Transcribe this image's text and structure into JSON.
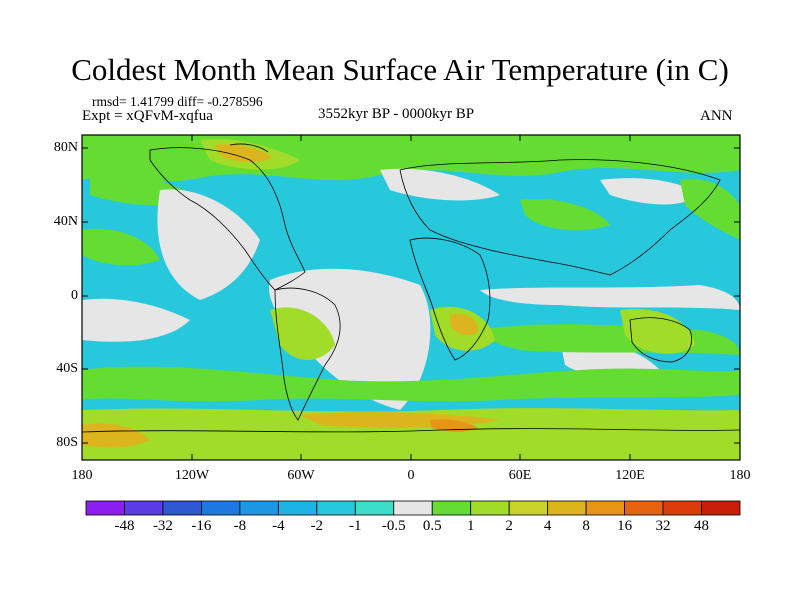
{
  "title": "Coldest Month Mean Surface Air Temperature (in C)",
  "stats": "rmsd= 1.41799  diff= -0.278596",
  "experiment": "Expt = xQFvM-xqfua",
  "period": "3552kyr BP - 0000kyr BP",
  "season": "ANN",
  "lat_labels": [
    "80N",
    "40N",
    "0",
    "40S",
    "80S"
  ],
  "lon_labels": [
    "180",
    "120W",
    "60W",
    "0",
    "60E",
    "120E",
    "180"
  ],
  "colorbar": {
    "labels": [
      "-48",
      "-32",
      "-16",
      "-8",
      "-4",
      "-2",
      "-1",
      "-0.5",
      "0.5",
      "1",
      "2",
      "4",
      "8",
      "16",
      "32",
      "48"
    ],
    "colors": [
      "#8c1ef0",
      "#5a3ce6",
      "#2d5ad2",
      "#1e78e1",
      "#1e96e6",
      "#1eb4e6",
      "#28c8dc",
      "#3cdcc8",
      "#e6e6e6",
      "#64dc32",
      "#a0dc28",
      "#c8d228",
      "#dcb41e",
      "#e69614",
      "#e6640f",
      "#dc3c0a",
      "#c81e0a"
    ]
  }
}
